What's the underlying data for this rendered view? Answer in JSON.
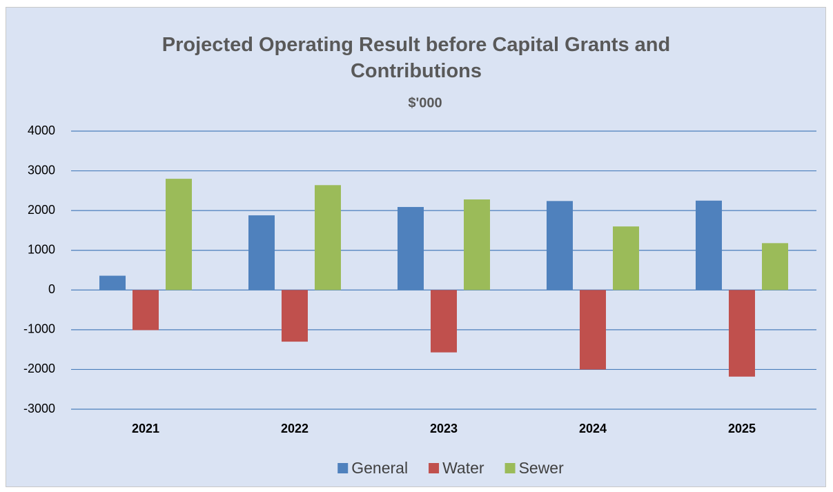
{
  "chart_data": {
    "type": "bar",
    "title": "Projected Operating Result before Capital Grants and Contributions",
    "subtitle": "$'000",
    "categories": [
      "2021",
      "2022",
      "2023",
      "2024",
      "2025"
    ],
    "series": [
      {
        "name": "General",
        "color": "#4f81bd",
        "values": [
          360,
          1880,
          2090,
          2240,
          2250
        ]
      },
      {
        "name": "Water",
        "color": "#c0504d",
        "values": [
          -1010,
          -1300,
          -1570,
          -2000,
          -2180
        ]
      },
      {
        "name": "Sewer",
        "color": "#9bbb59",
        "values": [
          2800,
          2640,
          2280,
          1600,
          1180
        ]
      }
    ],
    "ylim": [
      -3000,
      4000
    ],
    "yticks": [
      -3000,
      -2000,
      -1000,
      0,
      1000,
      2000,
      3000,
      4000
    ],
    "grid": true,
    "legend": "bottom"
  }
}
